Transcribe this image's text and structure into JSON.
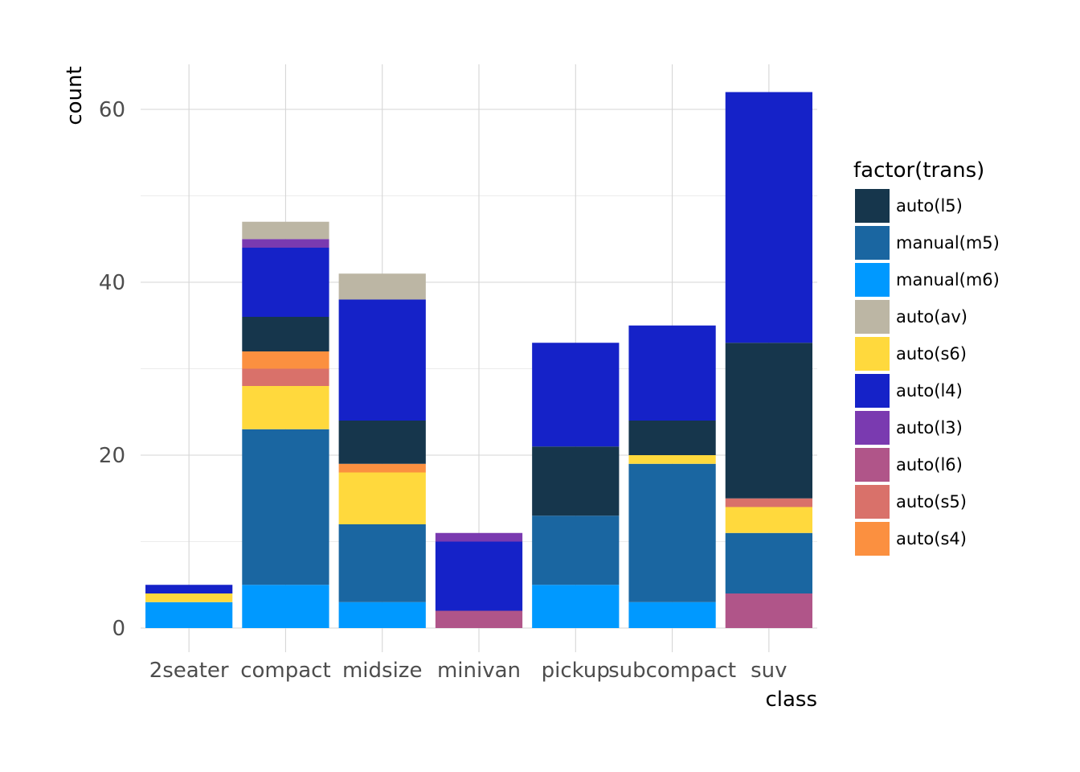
{
  "chart_data": {
    "type": "bar",
    "stacked": true,
    "title": "",
    "xlabel": "class",
    "ylabel": "count",
    "ylim": [
      0,
      65
    ],
    "yticks": [
      0,
      20,
      40,
      60
    ],
    "grid": true,
    "legend_position": "right",
    "legend_title": "factor(trans)",
    "categories": [
      "2seater",
      "compact",
      "midsize",
      "minivan",
      "pickup",
      "subcompact",
      "suv"
    ],
    "stack_order_bottom_to_top": [
      "auto(l6)",
      "manual(m6)",
      "manual(m5)",
      "auto(s6)",
      "auto(s5)",
      "auto(s4)",
      "auto(l5)",
      "auto(l4)",
      "auto(l3)",
      "auto(av)"
    ],
    "legend_order": [
      "auto(l5)",
      "manual(m5)",
      "manual(m6)",
      "auto(av)",
      "auto(s6)",
      "auto(l4)",
      "auto(l3)",
      "auto(l6)",
      "auto(s5)",
      "auto(s4)"
    ],
    "series": [
      {
        "name": "auto(l6)",
        "color": "#b05589",
        "values": [
          0,
          0,
          0,
          2,
          0,
          0,
          4
        ]
      },
      {
        "name": "manual(m6)",
        "color": "#0099ff",
        "values": [
          3,
          5,
          3,
          0,
          5,
          3,
          0
        ]
      },
      {
        "name": "manual(m5)",
        "color": "#1a66a1",
        "values": [
          0,
          18,
          9,
          0,
          8,
          16,
          7
        ]
      },
      {
        "name": "auto(s6)",
        "color": "#ffd93d",
        "values": [
          1,
          5,
          6,
          0,
          0,
          1,
          3
        ]
      },
      {
        "name": "auto(s5)",
        "color": "#d9716a",
        "values": [
          0,
          2,
          0,
          0,
          0,
          0,
          1
        ]
      },
      {
        "name": "auto(s4)",
        "color": "#fb9040",
        "values": [
          0,
          2,
          1,
          0,
          0,
          0,
          0
        ]
      },
      {
        "name": "auto(l5)",
        "color": "#16364c",
        "values": [
          0,
          4,
          5,
          0,
          8,
          4,
          18
        ]
      },
      {
        "name": "auto(l4)",
        "color": "#1522c8",
        "values": [
          1,
          8,
          14,
          8,
          12,
          11,
          29
        ]
      },
      {
        "name": "auto(l3)",
        "color": "#7a3ab0",
        "values": [
          0,
          1,
          0,
          1,
          0,
          0,
          0
        ]
      },
      {
        "name": "auto(av)",
        "color": "#bcb6a4",
        "values": [
          0,
          2,
          3,
          0,
          0,
          0,
          0
        ]
      }
    ]
  }
}
